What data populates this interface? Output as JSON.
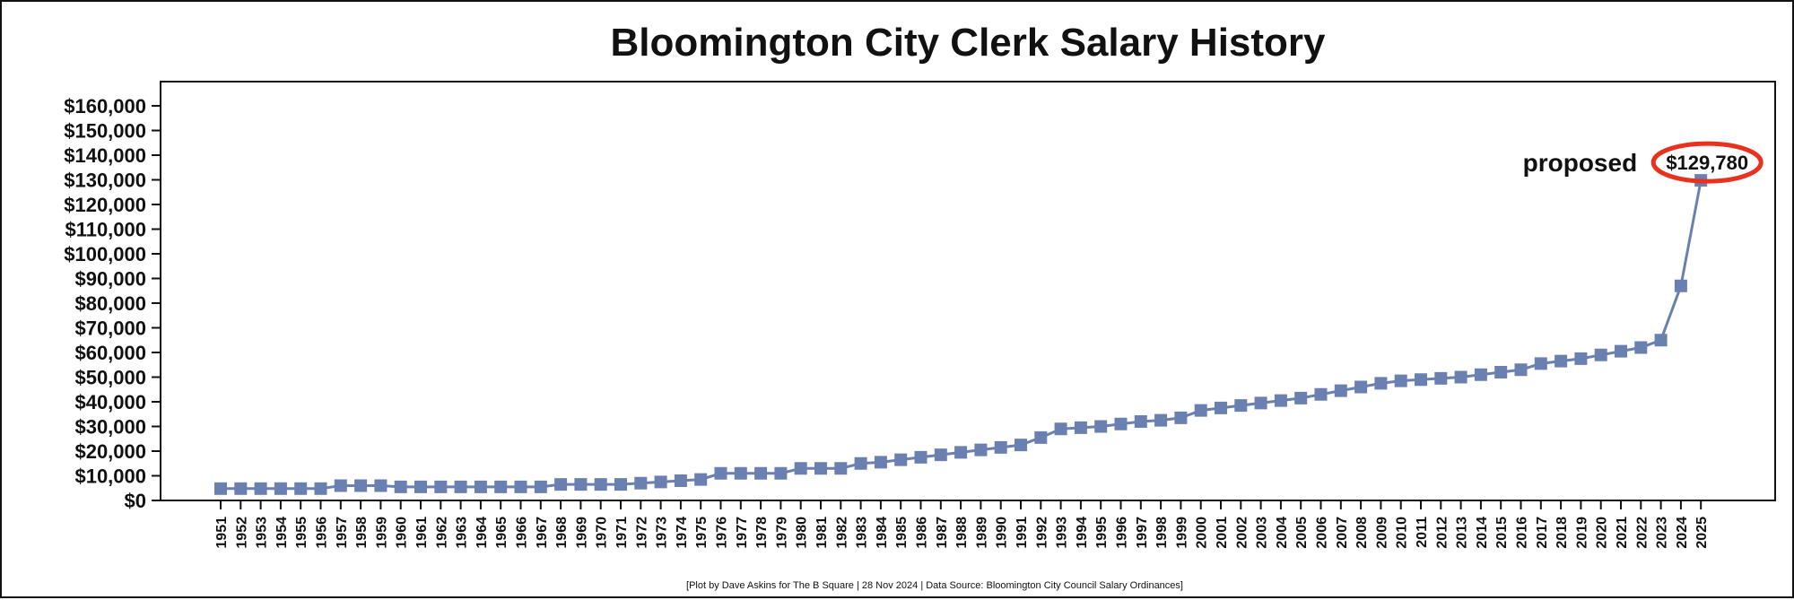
{
  "chart_data": {
    "type": "line",
    "title": "Bloomington City Clerk Salary History",
    "footer": "[Plot by Dave Askins for The B Square | 28 Nov 2024 | Data Source: Bloomington City Council Salary Ordinances]",
    "ylim": [
      0,
      170000
    ],
    "y_ticks": [
      0,
      10000,
      20000,
      30000,
      40000,
      50000,
      60000,
      70000,
      80000,
      90000,
      100000,
      110000,
      120000,
      130000,
      140000,
      150000,
      160000
    ],
    "y_tick_labels": [
      "$0",
      "$10,000",
      "$20,000",
      "$30,000",
      "$40,000",
      "$50,000",
      "$60,000",
      "$70,000",
      "$80,000",
      "$90,000",
      "$100,000",
      "$110,000",
      "$120,000",
      "$130,000",
      "$140,000",
      "$150,000",
      "$160,000"
    ],
    "grid": false,
    "categories": [
      "1951",
      "1952",
      "1953",
      "1954",
      "1955",
      "1956",
      "1957",
      "1958",
      "1959",
      "1960",
      "1961",
      "1962",
      "1963",
      "1964",
      "1965",
      "1966",
      "1967",
      "1968",
      "1969",
      "1970",
      "1971",
      "1972",
      "1973",
      "1974",
      "1975",
      "1976",
      "1977",
      "1978",
      "1979",
      "1980",
      "1981",
      "1982",
      "1983",
      "1984",
      "1985",
      "1986",
      "1987",
      "1988",
      "1989",
      "1990",
      "1991",
      "1992",
      "1993",
      "1994",
      "1995",
      "1996",
      "1997",
      "1998",
      "1999",
      "2000",
      "2001",
      "2002",
      "2003",
      "2004",
      "2005",
      "2006",
      "2007",
      "2008",
      "2009",
      "2010",
      "2011",
      "2012",
      "2013",
      "2014",
      "2015",
      "2016",
      "2017",
      "2018",
      "2019",
      "2020",
      "2021",
      "2022",
      "2023",
      "2024",
      "2025"
    ],
    "series": [
      {
        "values": [
          4800,
          4800,
          4800,
          4800,
          4800,
          4800,
          6000,
          6000,
          6000,
          5500,
          5500,
          5500,
          5500,
          5500,
          5500,
          5500,
          5500,
          6500,
          6500,
          6500,
          6500,
          7000,
          7500,
          8000,
          8500,
          11000,
          11000,
          11000,
          11000,
          13000,
          13000,
          13000,
          15000,
          15500,
          16500,
          17500,
          18500,
          19500,
          20500,
          21500,
          22500,
          25500,
          29000,
          29500,
          30000,
          31000,
          32000,
          32500,
          33500,
          36500,
          37500,
          38500,
          39500,
          40500,
          41500,
          43000,
          44500,
          46000,
          47500,
          48500,
          49000,
          49500,
          50000,
          51000,
          52000,
          53000,
          55500,
          56500,
          57500,
          59000,
          60500,
          62000,
          65000,
          87000,
          129780
        ],
        "color": "#6a80b0"
      }
    ],
    "annotation": {
      "label": "proposed",
      "value_text": "$129,780",
      "category": "2025",
      "circle_color": "#e8321e"
    }
  }
}
